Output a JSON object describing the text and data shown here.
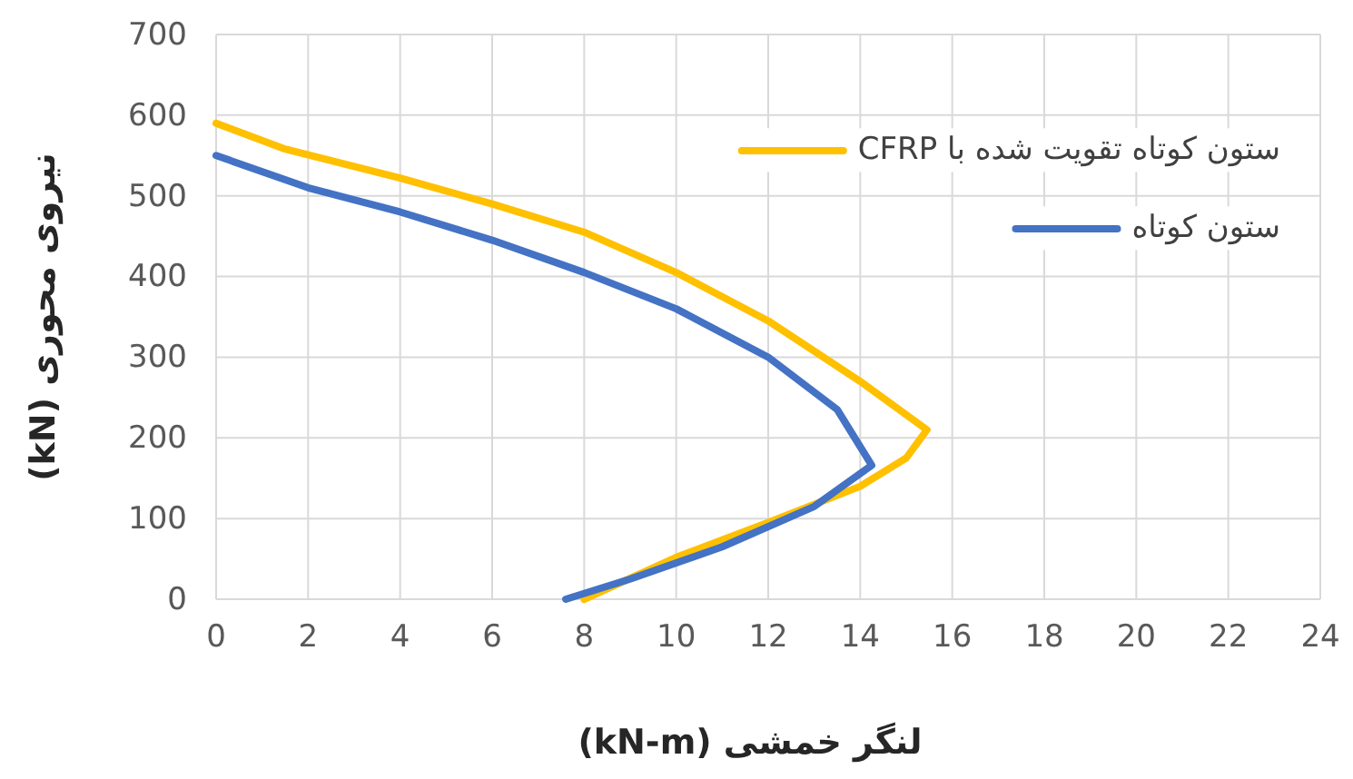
{
  "chart_data": {
    "type": "line",
    "xlabel": "لنگر خمشی (kN-m)",
    "ylabel": "نیروی محوری (kN)",
    "xlim": [
      0,
      24
    ],
    "xticks": [
      0,
      2,
      4,
      6,
      8,
      10,
      12,
      14,
      16,
      18,
      20,
      22,
      24
    ],
    "ylim": [
      0,
      700
    ],
    "yticks": [
      0,
      100,
      200,
      300,
      400,
      500,
      600,
      700
    ],
    "grid": true,
    "legend": "top right",
    "marker": "none",
    "line_style": "solid",
    "series": [
      {
        "name": "ستون کوتاه تقویت شده با CFRP",
        "color": "#ffc000",
        "x": [
          0,
          1.5,
          4,
          6,
          8,
          10,
          12,
          14,
          15.45,
          15,
          14,
          12,
          10,
          8
        ],
        "values": [
          590,
          558,
          522,
          490,
          455,
          405,
          345,
          270,
          210,
          175,
          140,
          95,
          52,
          0
        ]
      },
      {
        "name": "ستون کوتاه",
        "color": "#4472c4",
        "x": [
          0,
          2,
          4,
          6,
          8,
          10,
          12,
          13.5,
          14.25,
          13,
          11,
          9,
          7.6
        ],
        "values": [
          550,
          510,
          480,
          445,
          405,
          360,
          300,
          235,
          166,
          115,
          65,
          25,
          0
        ]
      }
    ]
  }
}
